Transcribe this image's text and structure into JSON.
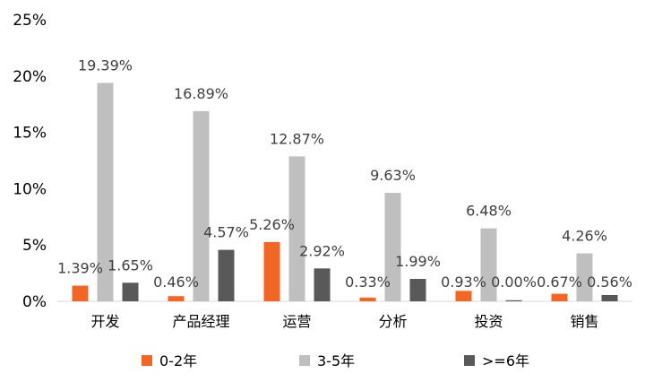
{
  "chart_data": {
    "type": "bar",
    "title": "",
    "xlabel": "",
    "ylabel": "",
    "ylim": [
      0,
      25
    ],
    "yticks": [
      0,
      5,
      10,
      15,
      20,
      25
    ],
    "ytick_labels": [
      "0%",
      "5%",
      "10%",
      "15%",
      "20%",
      "25%"
    ],
    "grid": false,
    "legend_position": "bottom",
    "categories": [
      "开发",
      "产品经理",
      "运营",
      "分析",
      "投资",
      "销售"
    ],
    "series": [
      {
        "name": "0-2年",
        "color": "#F26522",
        "values": [
          1.39,
          0.46,
          5.26,
          0.33,
          0.93,
          0.67
        ],
        "labels": [
          "1.39%",
          "0.46%",
          "5.26%",
          "0.33%",
          "0.93%",
          "0.67%"
        ]
      },
      {
        "name": "3-5年",
        "color": "#BFBFBF",
        "values": [
          19.39,
          16.89,
          12.87,
          9.63,
          6.48,
          4.26
        ],
        "labels": [
          "19.39%",
          "16.89%",
          "12.87%",
          "9.63%",
          "6.48%",
          "4.26%"
        ]
      },
      {
        "name": ">=6年",
        "color": "#595959",
        "values": [
          1.65,
          4.57,
          2.92,
          1.99,
          0.0,
          0.56
        ],
        "labels": [
          "1.65%",
          "4.57%",
          "2.92%",
          "1.99%",
          "0.00%",
          "0.56%"
        ]
      }
    ]
  }
}
